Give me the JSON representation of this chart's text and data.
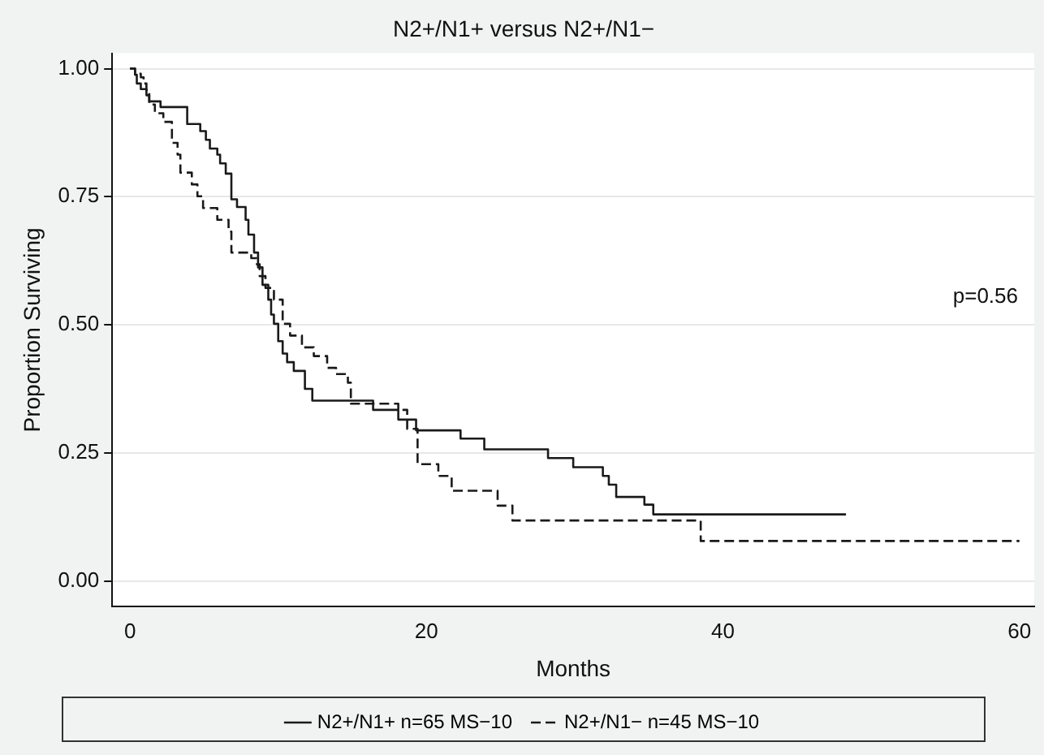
{
  "chart_data": {
    "type": "step",
    "title": "N2+/N1+ versus N2+/N1−",
    "xlabel": "Months",
    "ylabel": "Proportion Surviving",
    "annotations": [
      "p=0.56"
    ],
    "xlim": [
      -1.2,
      61
    ],
    "xticks": [
      0,
      20,
      40,
      60
    ],
    "ylim": [
      -0.05,
      1.03
    ],
    "yticks": [
      {
        "value": 0,
        "label": "0.00"
      },
      {
        "value": 0.25,
        "label": "0.25"
      },
      {
        "value": 0.5,
        "label": "0.50"
      },
      {
        "value": 0.75,
        "label": "0.75"
      },
      {
        "value": 1,
        "label": "1.00"
      }
    ],
    "grid": "y",
    "legend": "bottom",
    "marker": "none",
    "series": [
      {
        "name": "N2+/N1+ n=65 MS−10",
        "color": "#1a1a1a",
        "line_style": "solid",
        "x": [
          0,
          0.34,
          0.46,
          0.73,
          1.11,
          1.3,
          2.06,
          3.86,
          4.74,
          5.12,
          5.39,
          5.89,
          6.08,
          6.46,
          6.84,
          7.22,
          7.8,
          7.99,
          8.37,
          8.64,
          8.94,
          9.33,
          9.52,
          9.71,
          10.0,
          10.3,
          10.6,
          11.05,
          11.8,
          12.3,
          16.4,
          18.1,
          19.3,
          22.3,
          23.9,
          28.2,
          29.9,
          31.9,
          32.3,
          32.8,
          34.7,
          35.3,
          48.3
        ],
        "values": [
          1,
          0.988,
          0.971,
          0.96,
          0.948,
          0.936,
          0.925,
          0.892,
          0.878,
          0.861,
          0.844,
          0.832,
          0.815,
          0.795,
          0.745,
          0.73,
          0.705,
          0.676,
          0.641,
          0.612,
          0.578,
          0.549,
          0.52,
          0.502,
          0.468,
          0.444,
          0.427,
          0.41,
          0.375,
          0.352,
          0.334,
          0.315,
          0.294,
          0.278,
          0.257,
          0.24,
          0.222,
          0.205,
          0.188,
          0.164,
          0.149,
          0.13,
          0.13
        ]
      },
      {
        "name": "N2+/N1− n=45 MS−10",
        "color": "#1a1a1a",
        "line_style": "dashed",
        "x": [
          0,
          0.34,
          0.73,
          0.92,
          1.11,
          1.3,
          1.68,
          2.25,
          2.83,
          3.21,
          3.4,
          4.17,
          4.55,
          4.93,
          5.89,
          6.65,
          6.84,
          8.18,
          8.56,
          8.75,
          9.14,
          9.71,
          10.3,
          10.8,
          11.6,
          12.4,
          13.3,
          13.9,
          14.7,
          14.9,
          18.1,
          18.7,
          19.4,
          20.8,
          21.7,
          24.8,
          25.8,
          38.5,
          60
        ],
        "values": [
          1,
          0.99,
          0.983,
          0.971,
          0.954,
          0.93,
          0.913,
          0.896,
          0.855,
          0.832,
          0.797,
          0.774,
          0.751,
          0.728,
          0.705,
          0.682,
          0.641,
          0.63,
          0.618,
          0.595,
          0.572,
          0.549,
          0.502,
          0.479,
          0.456,
          0.439,
          0.416,
          0.404,
          0.387,
          0.346,
          0.334,
          0.297,
          0.228,
          0.205,
          0.176,
          0.147,
          0.118,
          0.078,
          0.078
        ]
      }
    ]
  }
}
